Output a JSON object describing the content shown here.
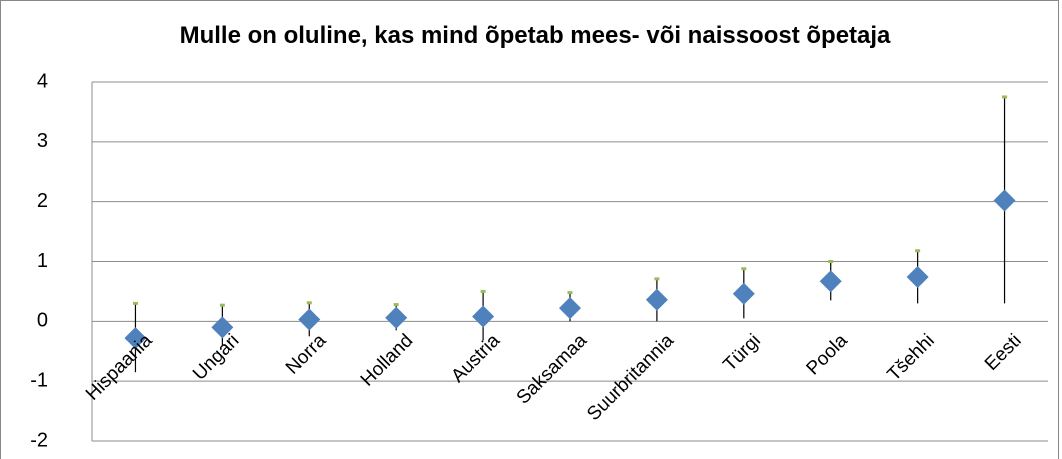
{
  "chart_data": {
    "type": "errorpoint",
    "title": "Mulle on oluline, kas mind õpetab mees- või naissoost õpetaja",
    "categories": [
      "Hispaania",
      "Ungari",
      "Norra",
      "Holland",
      "Austria",
      "Saksamaa",
      "Suurbritannia",
      "Türgi",
      "Poola",
      "Tšehhi",
      "Eesti"
    ],
    "series": [
      {
        "color": "#4f81bd",
        "values": [
          -0.28,
          -0.1,
          0.03,
          0.06,
          0.08,
          0.22,
          0.36,
          0.46,
          0.67,
          0.74,
          2.02
        ],
        "high": [
          0.3,
          0.27,
          0.31,
          0.28,
          0.5,
          0.48,
          0.71,
          0.88,
          1.0,
          1.18,
          3.75
        ],
        "low": [
          -0.85,
          -0.4,
          -0.25,
          -0.15,
          -0.32,
          0,
          0,
          0.05,
          0.35,
          0.3,
          0.3
        ],
        "high_color": "#9bbb59"
      }
    ],
    "ylim": [
      -2,
      4
    ],
    "yticks": [
      -2,
      -1,
      0,
      1,
      2,
      3,
      4
    ],
    "grid": true
  }
}
